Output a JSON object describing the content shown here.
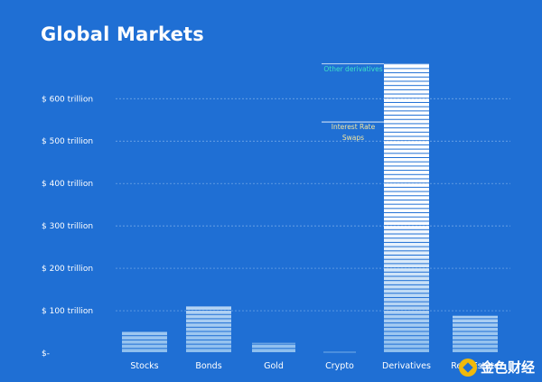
{
  "chart_data": {
    "type": "bar",
    "title": "Global Markets",
    "categories": [
      "Stocks",
      "Bonds",
      "Gold",
      "Crypto",
      "Derivatives",
      "Real Estate"
    ],
    "values": [
      50,
      110,
      24,
      3,
      682,
      88
    ],
    "ylim": [
      0,
      690
    ],
    "yticks": [
      {
        "value": 0,
        "label": "$-"
      },
      {
        "value": 100,
        "label": "$ 100 trillion"
      },
      {
        "value": 200,
        "label": "$ 200 trillion"
      },
      {
        "value": 300,
        "label": "$ 300 trillion"
      },
      {
        "value": 400,
        "label": "$ 400 trillion"
      },
      {
        "value": 500,
        "label": "$ 500 trillion"
      },
      {
        "value": 600,
        "label": "$ 600 trillion"
      }
    ],
    "grid": true,
    "stripe_unit": 10,
    "annotations": [
      {
        "category": "Derivatives",
        "value": 682,
        "text": "Other derivatives",
        "color": "#3ee0c8"
      },
      {
        "category": "Derivatives",
        "value": 545,
        "text": "Interest Rate\nSwaps",
        "color": "#f3e6a0"
      }
    ],
    "colors": {
      "background": "#1f6fd4",
      "bar_top": "#ffffff",
      "bar_bottom": "#8fbfee",
      "grid": "#7fb0ea",
      "text": "#ffffff"
    }
  },
  "watermark": {
    "text": "金色财经"
  }
}
